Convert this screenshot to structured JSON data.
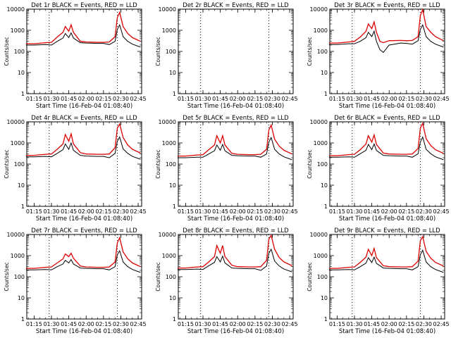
{
  "figure": {
    "panels_rows": 3,
    "panels_cols": 3
  },
  "chart_data": [
    {
      "type": "line",
      "title": "Det 1r BLACK = Events, RED = LLD",
      "xlabel": "Start Time (16-Feb-04 01:08:40)",
      "ylabel": "Counts/sec",
      "x_ticks": [
        "01:15",
        "01:30",
        "01:45",
        "02:00",
        "02:15",
        "02:30",
        "02:45"
      ],
      "y_ticks": [
        "1",
        "10",
        "100",
        "1000",
        "10000"
      ],
      "y_scale": "log",
      "ylim": [
        1,
        10000
      ],
      "xlim": [
        "01:08:40",
        "02:48:00"
      ],
      "vlines": [
        "01:28",
        "02:27"
      ],
      "colors": {
        "events": "#000000",
        "lld": "#dd0000"
      },
      "x": [
        "01:08",
        "01:15",
        "01:25",
        "01:30",
        "01:35",
        "01:40",
        "01:42",
        "01:45",
        "01:47",
        "01:49",
        "01:55",
        "02:00",
        "02:10",
        "02:15",
        "02:20",
        "02:25",
        "02:27",
        "02:29",
        "02:32",
        "02:36",
        "02:40",
        "02:47"
      ],
      "series": [
        {
          "name": "LLD",
          "values": [
            230,
            230,
            260,
            270,
            480,
            800,
            1500,
            900,
            1800,
            800,
            300,
            280,
            270,
            270,
            280,
            500,
            4000,
            7000,
            1500,
            700,
            450,
            300
          ]
        },
        {
          "name": "Events",
          "values": [
            200,
            200,
            210,
            200,
            300,
            430,
            700,
            450,
            750,
            430,
            260,
            250,
            240,
            240,
            210,
            300,
            1100,
            1800,
            500,
            300,
            220,
            160
          ]
        }
      ]
    },
    {
      "type": "line",
      "title": "Det 2r BLACK = Events, RED = LLD",
      "xlabel": "Start Time (16-Feb-04 01:08:40)",
      "ylabel": "Counts/sec",
      "x_ticks": [
        "01:15",
        "01:30",
        "01:45",
        "02:00",
        "02:15",
        "02:30",
        "02:45"
      ],
      "y_ticks": [
        "1",
        "10",
        "100",
        "1000",
        "10000"
      ],
      "y_scale": "log",
      "ylim": [
        1,
        10000
      ],
      "xlim": [
        "01:08:40",
        "02:48:00"
      ],
      "vlines": [
        "01:28",
        "02:27"
      ],
      "colors": {
        "events": "#000000",
        "lld": "#dd0000"
      },
      "x": [],
      "series": []
    },
    {
      "type": "line",
      "title": "Det 3r BLACK = Events, RED = LLD",
      "xlabel": "Start Time (16-Feb-04 01:08:40)",
      "ylabel": "Counts/sec",
      "x_ticks": [
        "01:15",
        "01:30",
        "01:45",
        "02:00",
        "02:15",
        "02:30",
        "02:45"
      ],
      "y_ticks": [
        "1",
        "10",
        "100",
        "1000",
        "10000"
      ],
      "y_scale": "log",
      "ylim": [
        1,
        10000
      ],
      "xlim": [
        "01:08:40",
        "02:48:00"
      ],
      "vlines": [
        "01:28",
        "02:27"
      ],
      "colors": {
        "events": "#000000",
        "lld": "#dd0000"
      },
      "x": [
        "01:08",
        "01:15",
        "01:25",
        "01:30",
        "01:35",
        "01:40",
        "01:42",
        "01:45",
        "01:47",
        "01:49",
        "01:52",
        "01:55",
        "02:00",
        "02:10",
        "02:15",
        "02:20",
        "02:25",
        "02:27",
        "02:29",
        "02:32",
        "02:36",
        "02:40",
        "02:47"
      ],
      "series": [
        {
          "name": "LLD",
          "values": [
            250,
            250,
            280,
            300,
            480,
            900,
            2000,
            1200,
            2500,
            800,
            300,
            260,
            320,
            330,
            320,
            330,
            500,
            5000,
            9500,
            1500,
            800,
            500,
            320
          ]
        },
        {
          "name": "Events",
          "values": [
            210,
            210,
            230,
            230,
            300,
            450,
            800,
            500,
            900,
            300,
            120,
            90,
            200,
            250,
            240,
            220,
            320,
            1100,
            1800,
            500,
            300,
            220,
            160
          ]
        }
      ]
    },
    {
      "type": "line",
      "title": "Det 4r BLACK = Events, RED = LLD",
      "xlabel": "Start Time (16-Feb-04 01:08:40)",
      "ylabel": "Counts/sec",
      "x_ticks": [
        "01:15",
        "01:30",
        "01:45",
        "02:00",
        "02:15",
        "02:30",
        "02:45"
      ],
      "y_ticks": [
        "1",
        "10",
        "100",
        "1000",
        "10000"
      ],
      "y_scale": "log",
      "ylim": [
        1,
        10000
      ],
      "xlim": [
        "01:08:40",
        "02:48:00"
      ],
      "vlines": [
        "01:28",
        "02:27"
      ],
      "colors": {
        "events": "#000000",
        "lld": "#dd0000"
      },
      "x": [
        "01:08",
        "01:15",
        "01:25",
        "01:30",
        "01:35",
        "01:40",
        "01:42",
        "01:45",
        "01:47",
        "01:49",
        "01:55",
        "02:00",
        "02:10",
        "02:15",
        "02:20",
        "02:25",
        "02:27",
        "02:29",
        "02:32",
        "02:36",
        "02:40",
        "02:47"
      ],
      "series": [
        {
          "name": "LLD",
          "values": [
            260,
            260,
            290,
            300,
            500,
            900,
            2500,
            1200,
            2700,
            900,
            350,
            300,
            290,
            290,
            300,
            600,
            5000,
            8000,
            1800,
            800,
            500,
            330
          ]
        },
        {
          "name": "Events",
          "values": [
            220,
            220,
            230,
            220,
            320,
            480,
            900,
            500,
            1000,
            450,
            260,
            240,
            230,
            230,
            200,
            320,
            1200,
            1900,
            520,
            320,
            230,
            170
          ]
        }
      ]
    },
    {
      "type": "line",
      "title": "Det 5r BLACK = Events, RED = LLD",
      "xlabel": "Start Time (16-Feb-04 01:08:40)",
      "ylabel": "Counts/sec",
      "x_ticks": [
        "01:15",
        "01:30",
        "01:45",
        "02:00",
        "02:15",
        "02:30",
        "02:45"
      ],
      "y_ticks": [
        "1",
        "10",
        "100",
        "1000",
        "10000"
      ],
      "y_scale": "log",
      "ylim": [
        1,
        10000
      ],
      "xlim": [
        "01:08:40",
        "02:48:00"
      ],
      "vlines": [
        "01:28",
        "02:27"
      ],
      "colors": {
        "events": "#000000",
        "lld": "#dd0000"
      },
      "x": [
        "01:08",
        "01:15",
        "01:25",
        "01:30",
        "01:35",
        "01:40",
        "01:42",
        "01:45",
        "01:47",
        "01:49",
        "01:55",
        "02:00",
        "02:10",
        "02:15",
        "02:20",
        "02:25",
        "02:27",
        "02:29",
        "02:32",
        "02:36",
        "02:40",
        "02:47"
      ],
      "series": [
        {
          "name": "LLD",
          "values": [
            240,
            240,
            270,
            280,
            480,
            800,
            2200,
            1000,
            2200,
            800,
            320,
            290,
            280,
            280,
            290,
            500,
            4000,
            7000,
            1500,
            700,
            450,
            300
          ]
        },
        {
          "name": "Events",
          "values": [
            200,
            200,
            210,
            210,
            300,
            430,
            800,
            450,
            850,
            430,
            260,
            250,
            240,
            240,
            210,
            300,
            1100,
            1800,
            500,
            300,
            220,
            160
          ]
        }
      ]
    },
    {
      "type": "line",
      "title": "Det 6r BLACK = Events, RED = LLD",
      "xlabel": "Start Time (16-Feb-04 01:08:40)",
      "ylabel": "Counts/sec",
      "x_ticks": [
        "01:15",
        "01:30",
        "01:45",
        "02:00",
        "02:15",
        "02:30",
        "02:45"
      ],
      "y_ticks": [
        "1",
        "10",
        "100",
        "1000",
        "10000"
      ],
      "y_scale": "log",
      "ylim": [
        1,
        10000
      ],
      "xlim": [
        "01:08:40",
        "02:48:00"
      ],
      "vlines": [
        "01:28",
        "02:27"
      ],
      "colors": {
        "events": "#000000",
        "lld": "#dd0000"
      },
      "x": [
        "01:08",
        "01:15",
        "01:25",
        "01:30",
        "01:35",
        "01:40",
        "01:42",
        "01:45",
        "01:47",
        "01:49",
        "01:55",
        "02:00",
        "02:10",
        "02:15",
        "02:20",
        "02:25",
        "02:27",
        "02:29",
        "02:32",
        "02:36",
        "02:40",
        "02:47"
      ],
      "series": [
        {
          "name": "LLD",
          "values": [
            250,
            250,
            280,
            290,
            480,
            900,
            2200,
            1100,
            2400,
            850,
            330,
            300,
            290,
            290,
            300,
            550,
            5000,
            8500,
            1600,
            750,
            480,
            320
          ]
        },
        {
          "name": "Events",
          "values": [
            210,
            210,
            220,
            210,
            310,
            450,
            850,
            480,
            900,
            440,
            260,
            250,
            240,
            240,
            210,
            310,
            1100,
            1900,
            500,
            310,
            220,
            160
          ]
        }
      ]
    },
    {
      "type": "line",
      "title": "Det 7r BLACK = Events, RED = LLD",
      "xlabel": "Start Time (16-Feb-04 01:08:40)",
      "ylabel": "Counts/sec",
      "x_ticks": [
        "01:15",
        "01:30",
        "01:45",
        "02:00",
        "02:15",
        "02:30",
        "02:45"
      ],
      "y_ticks": [
        "1",
        "10",
        "100",
        "1000",
        "10000"
      ],
      "y_scale": "log",
      "ylim": [
        1,
        10000
      ],
      "xlim": [
        "01:08:40",
        "02:48:00"
      ],
      "vlines": [
        "01:28",
        "02:27"
      ],
      "colors": {
        "events": "#000000",
        "lld": "#dd0000"
      },
      "x": [
        "01:08",
        "01:15",
        "01:25",
        "01:30",
        "01:35",
        "01:40",
        "01:42",
        "01:45",
        "01:47",
        "01:49",
        "01:55",
        "02:00",
        "02:10",
        "02:15",
        "02:20",
        "02:25",
        "02:27",
        "02:29",
        "02:32",
        "02:36",
        "02:40",
        "02:47"
      ],
      "series": [
        {
          "name": "LLD",
          "values": [
            250,
            250,
            280,
            290,
            450,
            700,
            1200,
            900,
            1300,
            750,
            320,
            290,
            280,
            280,
            290,
            500,
            4000,
            7000,
            1500,
            700,
            450,
            300
          ]
        },
        {
          "name": "Events",
          "values": [
            210,
            210,
            220,
            210,
            300,
            400,
            600,
            450,
            650,
            400,
            260,
            250,
            240,
            240,
            210,
            300,
            1100,
            1700,
            500,
            300,
            220,
            160
          ]
        }
      ]
    },
    {
      "type": "line",
      "title": "Det 8r BLACK = Events, RED = LLD",
      "xlabel": "Start Time (16-Feb-04 01:08:40)",
      "ylabel": "Counts/sec",
      "x_ticks": [
        "01:15",
        "01:30",
        "01:45",
        "02:00",
        "02:15",
        "02:30",
        "02:45"
      ],
      "y_ticks": [
        "1",
        "10",
        "100",
        "1000",
        "10000"
      ],
      "y_scale": "log",
      "ylim": [
        1,
        10000
      ],
      "xlim": [
        "01:08:40",
        "02:48:00"
      ],
      "vlines": [
        "01:28",
        "02:27"
      ],
      "colors": {
        "events": "#000000",
        "lld": "#dd0000"
      },
      "x": [
        "01:08",
        "01:15",
        "01:25",
        "01:30",
        "01:35",
        "01:40",
        "01:42",
        "01:45",
        "01:47",
        "01:49",
        "01:55",
        "02:00",
        "02:10",
        "02:15",
        "02:20",
        "02:25",
        "02:27",
        "02:29",
        "02:32",
        "02:36",
        "02:40",
        "02:47"
      ],
      "series": [
        {
          "name": "LLD",
          "values": [
            260,
            260,
            290,
            300,
            500,
            900,
            3000,
            1300,
            3000,
            900,
            350,
            300,
            290,
            290,
            300,
            600,
            6000,
            9000,
            2000,
            800,
            500,
            330
          ]
        },
        {
          "name": "Events",
          "values": [
            220,
            220,
            230,
            220,
            330,
            480,
            900,
            500,
            950,
            450,
            260,
            250,
            240,
            240,
            200,
            320,
            1300,
            2000,
            550,
            320,
            230,
            170
          ]
        }
      ]
    },
    {
      "type": "line",
      "title": "Det 9r BLACK = Events, RED = LLD",
      "xlabel": "Start Time (16-Feb-04 01:08:40)",
      "ylabel": "Counts/sec",
      "x_ticks": [
        "01:15",
        "01:30",
        "01:45",
        "02:00",
        "02:15",
        "02:30",
        "02:45"
      ],
      "y_ticks": [
        "1",
        "10",
        "100",
        "1000",
        "10000"
      ],
      "y_scale": "log",
      "ylim": [
        1,
        10000
      ],
      "xlim": [
        "01:08:40",
        "02:48:00"
      ],
      "vlines": [
        "01:28",
        "02:27"
      ],
      "colors": {
        "events": "#000000",
        "lld": "#dd0000"
      },
      "x": [
        "01:08",
        "01:15",
        "01:25",
        "01:30",
        "01:35",
        "01:40",
        "01:42",
        "01:45",
        "01:47",
        "01:49",
        "01:55",
        "02:00",
        "02:10",
        "02:15",
        "02:20",
        "02:25",
        "02:27",
        "02:29",
        "02:32",
        "02:36",
        "02:40",
        "02:47"
      ],
      "series": [
        {
          "name": "LLD",
          "values": [
            250,
            250,
            280,
            290,
            480,
            850,
            2000,
            1000,
            2200,
            800,
            330,
            300,
            290,
            290,
            300,
            550,
            5000,
            8000,
            1600,
            750,
            480,
            320
          ]
        },
        {
          "name": "Events",
          "values": [
            210,
            210,
            220,
            210,
            300,
            440,
            800,
            470,
            850,
            430,
            260,
            250,
            240,
            240,
            210,
            300,
            1100,
            1800,
            500,
            300,
            220,
            160
          ]
        }
      ]
    }
  ]
}
